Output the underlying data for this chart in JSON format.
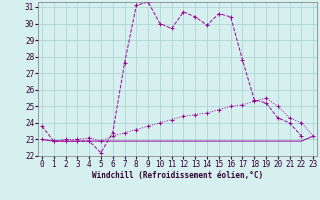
{
  "xlabel": "Windchill (Refroidissement éolien,°C)",
  "bg_color": "#d6f0f0",
  "grid_color": "#a8cece",
  "line_color": "#990099",
  "xmin": 0,
  "xmax": 23,
  "ymin": 22,
  "ymax": 31,
  "x": [
    0,
    1,
    2,
    3,
    4,
    5,
    6,
    7,
    8,
    9,
    10,
    11,
    12,
    13,
    14,
    15,
    16,
    17,
    18,
    19,
    20,
    21,
    22,
    23
  ],
  "line1": [
    23.8,
    22.9,
    22.9,
    22.9,
    22.9,
    22.2,
    23.4,
    27.6,
    31.1,
    31.3,
    30.0,
    29.7,
    30.7,
    30.4,
    29.9,
    30.6,
    30.4,
    27.8,
    25.4,
    25.2,
    24.3,
    24.0,
    23.2,
    null
  ],
  "line2": [
    23.0,
    22.9,
    23.0,
    23.0,
    23.1,
    22.9,
    23.2,
    23.4,
    23.6,
    23.8,
    24.0,
    24.2,
    24.4,
    24.5,
    24.6,
    24.8,
    25.0,
    25.1,
    25.3,
    25.5,
    25.0,
    24.3,
    24.0,
    23.2
  ],
  "line3": [
    23.0,
    22.9,
    22.9,
    22.9,
    22.9,
    22.9,
    22.9,
    22.9,
    22.9,
    22.9,
    22.9,
    22.9,
    22.9,
    22.9,
    22.9,
    22.9,
    22.9,
    22.9,
    22.9,
    22.9,
    22.9,
    22.9,
    22.9,
    23.2
  ],
  "xlabel_fontsize": 5.5,
  "tick_fontsize": 5.5
}
